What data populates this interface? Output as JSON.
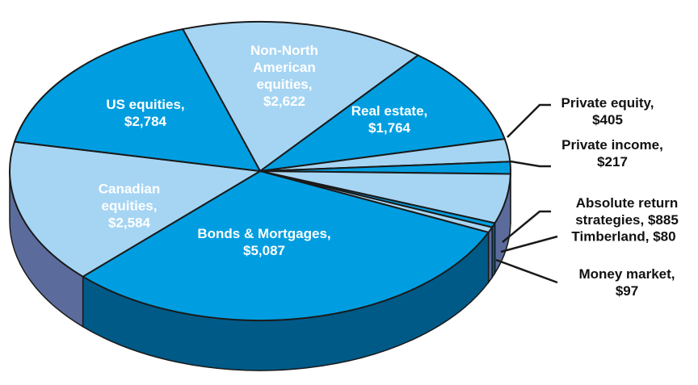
{
  "chart_data": {
    "type": "pie",
    "categories": [
      "Non-North American equities,",
      "Real estate,",
      "Private equity,",
      "Private income,",
      "Absolute return strategies,",
      "Timberland,",
      "Money market,",
      "Bonds & Mortgages,",
      "Canadian equities,",
      "US equities,"
    ],
    "values": [
      2622,
      1764,
      405,
      217,
      885,
      80,
      97,
      5087,
      2584,
      2784
    ],
    "value_labels": [
      "$2,622",
      "$1,764",
      "$405",
      "$217",
      "$885",
      "$80",
      "$97",
      "$5,087",
      "$2,584",
      "$2,784"
    ],
    "colors": [
      "#a6d5f3",
      "#009ee0",
      "#a6d5f3",
      "#009ee0",
      "#a6d5f3",
      "#009ee0",
      "#a6d5f3",
      "#009ee0",
      "#a6d5f3",
      "#009ee0"
    ],
    "side_colors": [
      "#5b6c9c",
      "#005a88",
      "#5b6c9c",
      "#005a88",
      "#5b6c9c",
      "#005a88",
      "#5b6c9c",
      "#005a88",
      "#5b6c9c",
      "#005a88"
    ]
  }
}
